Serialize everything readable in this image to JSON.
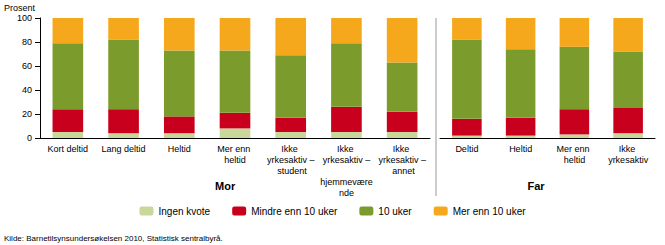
{
  "chart_data": [
    {
      "type": "bar",
      "group": "Mor",
      "y_label": "Prosent",
      "stacked": true,
      "grid": false,
      "categories": [
        "Kort deltid",
        "Lang deltid",
        "Heltid",
        "Mer enn heltid",
        "Ikke yrkesaktiv – student",
        "Ikke yrkesaktiv – hjemmeværende",
        "Ikke yrkesaktiv – annet"
      ],
      "ylim": [
        0,
        100
      ],
      "yticks": [
        0,
        20,
        40,
        60,
        80,
        100
      ],
      "series": [
        {
          "name": "Ingen kvote",
          "color": "#c9d79b",
          "values": [
            5,
            4,
            4,
            8,
            5,
            5,
            5
          ]
        },
        {
          "name": "Mindre enn 10 uker",
          "color": "#c8001e",
          "values": [
            19,
            20,
            14,
            13,
            12,
            21,
            17
          ]
        },
        {
          "name": "10 uker",
          "color": "#7b9c2c",
          "values": [
            55,
            58,
            55,
            52,
            52,
            53,
            41
          ]
        },
        {
          "name": "Mer enn 10 uker",
          "color": "#f6a81c",
          "values": [
            21,
            18,
            27,
            27,
            31,
            21,
            37
          ]
        }
      ]
    },
    {
      "type": "bar",
      "group": "Far",
      "stacked": true,
      "grid": false,
      "tick_labels": "x",
      "categories": [
        "Deltid",
        "Heltid",
        "Mer enn heltid",
        "Ikke yrkesaktiv"
      ],
      "ylim": [
        0,
        100
      ],
      "yticks": [
        0,
        20,
        40,
        60,
        80,
        100
      ],
      "series": [
        {
          "name": "Ingen kvote",
          "color": "#c9d79b",
          "values": [
            2,
            2,
            3,
            4
          ]
        },
        {
          "name": "Mindre enn 10 uker",
          "color": "#c8001e",
          "values": [
            14,
            15,
            21,
            21
          ]
        },
        {
          "name": "10 uker",
          "color": "#7b9c2c",
          "values": [
            66,
            57,
            52,
            47
          ]
        },
        {
          "name": "Mer enn 10 uker",
          "color": "#f6a81c",
          "values": [
            18,
            26,
            24,
            28
          ]
        }
      ]
    }
  ],
  "source": "Kilde: Barnetilsynsundersøkelsen 2010, Statistisk sentralbyrå."
}
